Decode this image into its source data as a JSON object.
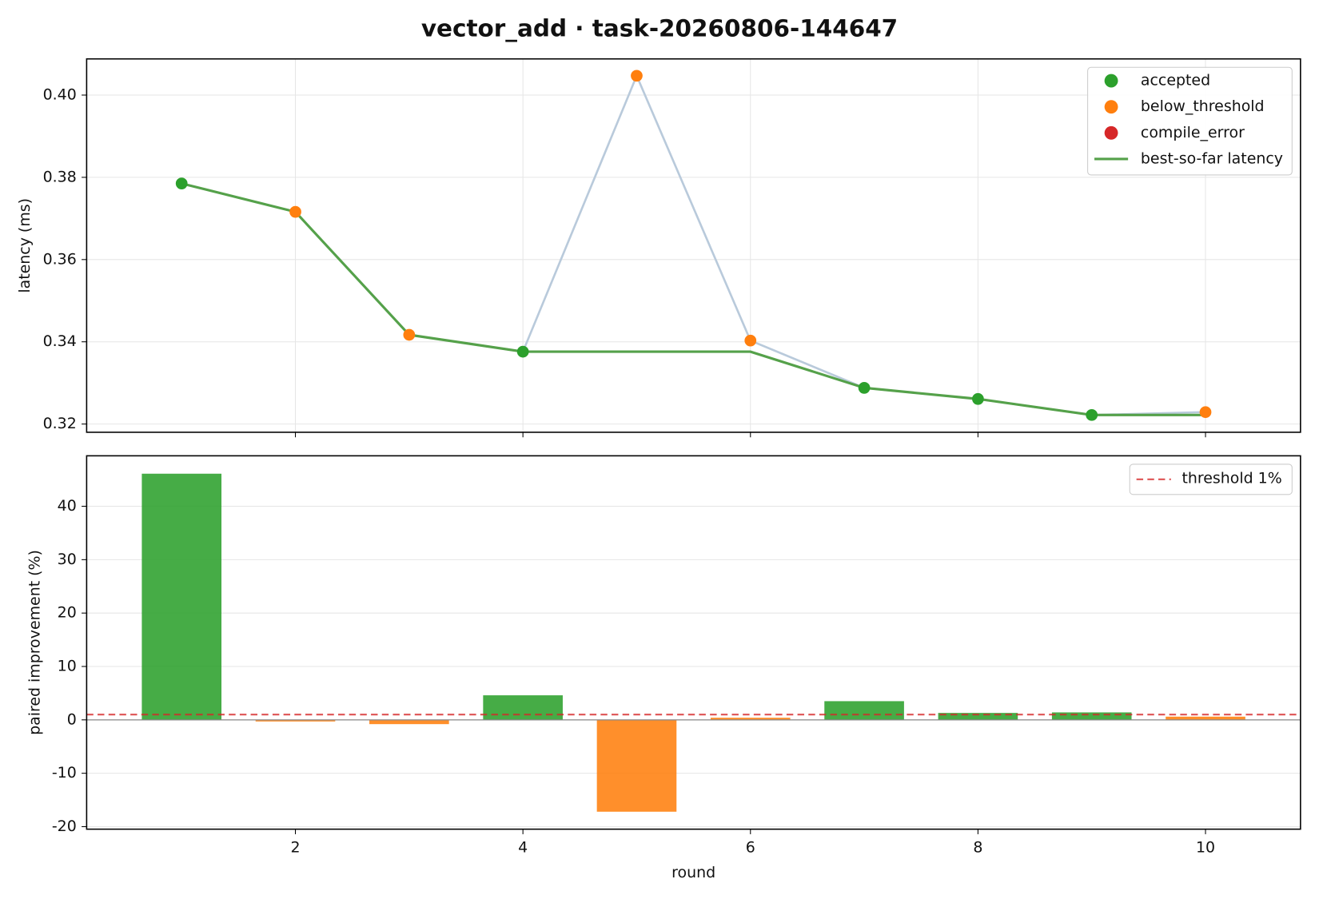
{
  "chart_data": [
    {
      "type": "line",
      "title": "vector_add · task-20260806-144647",
      "ylabel": "latency (ms)",
      "x": [
        1,
        2,
        3,
        4,
        5,
        6,
        7,
        8,
        9,
        10
      ],
      "xlim": [
        0.165,
        10.835
      ],
      "xticks": [
        2,
        4,
        6,
        8,
        10
      ],
      "ylim": [
        0.318,
        0.4088
      ],
      "yticks": [
        0.32,
        0.34,
        0.36,
        0.38,
        {
          "value": 0.4,
          "label": "0.40"
        }
      ],
      "grid": "both",
      "legend": "upper right",
      "latency": {
        "color": "#b9cadb",
        "values": [
          0.3785,
          0.3716,
          0.3417,
          0.3376,
          0.4047,
          0.3403,
          0.3288,
          0.3261,
          0.3222,
          0.3229
        ]
      },
      "status": [
        "accepted",
        "below_threshold",
        "below_threshold",
        "accepted",
        "below_threshold",
        "below_threshold",
        "accepted",
        "accepted",
        "accepted",
        "below_threshold"
      ],
      "series": [
        {
          "name": "accepted",
          "color": "#2ca02c"
        },
        {
          "name": "below_threshold",
          "color": "#ff7f0e"
        },
        {
          "name": "compile_error",
          "color": "#d62728"
        },
        {
          "name": "best-so-far latency",
          "color": "#55a14a",
          "values": [
            0.3785,
            0.3716,
            0.3417,
            0.3376,
            0.3376,
            0.3376,
            0.3288,
            0.3261,
            0.3222,
            0.3222
          ]
        }
      ]
    },
    {
      "type": "bar",
      "xlabel": "round",
      "ylabel": "paired improvement (%)",
      "x": [
        1,
        2,
        3,
        4,
        5,
        6,
        7,
        8,
        9,
        10
      ],
      "values": [
        46.1,
        -0.3,
        -0.8,
        4.6,
        -17.2,
        0.4,
        3.5,
        1.3,
        1.4,
        0.6
      ],
      "xlim": [
        0.165,
        10.835
      ],
      "xticks": [
        2,
        4,
        6,
        8,
        10
      ],
      "ylim": [
        -20.47,
        49.45
      ],
      "yticks": [
        -20,
        -10,
        0,
        10,
        20,
        30,
        40
      ],
      "grid": "y",
      "legend": "upper right",
      "threshold": {
        "name": "threshold 1%",
        "value": 1,
        "color": "#d62728"
      }
    }
  ]
}
